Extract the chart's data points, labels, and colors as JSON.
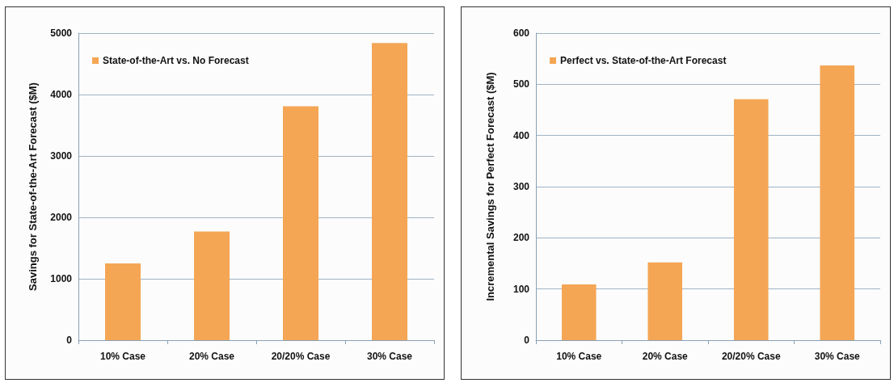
{
  "chart_data": [
    {
      "type": "bar",
      "ylabel": "Savings for State-of-the-Art Forecast ($M)",
      "categories": [
        "10% Case",
        "20% Case",
        "20/20% Case",
        "30% Case"
      ],
      "series": [
        {
          "name": "State-of-the-Art vs. No Forecast",
          "color": "#f4a655",
          "values": [
            1250,
            1770,
            3810,
            4840
          ]
        }
      ],
      "ylim": [
        0,
        5000
      ],
      "yticks": [
        0,
        1000,
        2000,
        3000,
        4000,
        5000
      ],
      "grid": "y",
      "legend": "top left"
    },
    {
      "type": "bar",
      "ylabel": "Incremental Savings for Perfect Forecast ($M)",
      "categories": [
        "10% Case",
        "20% Case",
        "20/20% Case",
        "30% Case"
      ],
      "series": [
        {
          "name": "Perfect vs. State-of-the-Art Forecast",
          "color": "#f4a655",
          "values": [
            109,
            152,
            471,
            537
          ]
        }
      ],
      "ylim": [
        0,
        600
      ],
      "yticks": [
        0,
        100,
        200,
        300,
        400,
        500,
        600
      ],
      "grid": "y",
      "legend": "top left"
    }
  ]
}
